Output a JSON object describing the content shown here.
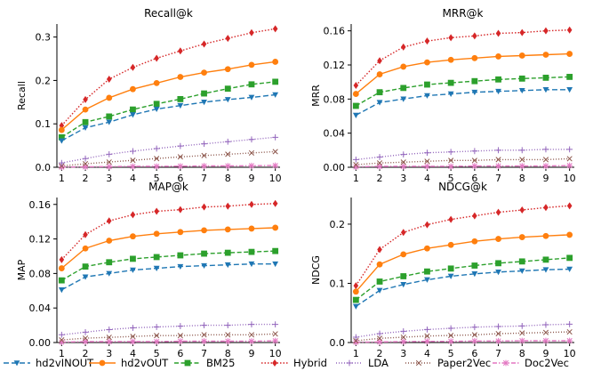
{
  "legend": [
    {
      "label": "hd2vINOUT",
      "color": "#1f77b4"
    },
    {
      "label": "hd2vOUT",
      "color": "#ff7f0e"
    },
    {
      "label": "BM25",
      "color": "#2ca02c"
    },
    {
      "label": "Hybrid",
      "color": "#d62728"
    },
    {
      "label": "LDA",
      "color": "#9467bd"
    },
    {
      "label": "Paper2Vec",
      "color": "#8c564b"
    },
    {
      "label": "Doc2Vec",
      "color": "#e377c2"
    }
  ],
  "chart_data": [
    {
      "type": "line",
      "title": "Recall@k",
      "xlabel": "",
      "ylabel": "Recall",
      "x": [
        1,
        2,
        3,
        4,
        5,
        6,
        7,
        8,
        9,
        10
      ],
      "ylim": [
        0,
        0.33
      ],
      "yticks": [
        "0.0",
        "0.1",
        "0.2",
        "0.3"
      ],
      "ytick_values": [
        0,
        0.1,
        0.2,
        0.3
      ],
      "xticks": [
        "1",
        "2",
        "3",
        "4",
        "5",
        "6",
        "7",
        "8",
        "9",
        "10"
      ],
      "series": [
        {
          "name": "hd2vINOUT",
          "values": [
            0.061,
            0.091,
            0.104,
            0.121,
            0.134,
            0.142,
            0.15,
            0.156,
            0.161,
            0.167
          ]
        },
        {
          "name": "hd2vOUT",
          "values": [
            0.086,
            0.133,
            0.16,
            0.18,
            0.194,
            0.208,
            0.218,
            0.226,
            0.236,
            0.243
          ]
        },
        {
          "name": "BM25",
          "values": [
            0.069,
            0.104,
            0.117,
            0.133,
            0.146,
            0.157,
            0.17,
            0.181,
            0.191,
            0.197
          ]
        },
        {
          "name": "Hybrid",
          "values": [
            0.096,
            0.156,
            0.203,
            0.23,
            0.251,
            0.268,
            0.284,
            0.297,
            0.31,
            0.319
          ]
        },
        {
          "name": "LDA",
          "values": [
            0.01,
            0.02,
            0.03,
            0.037,
            0.043,
            0.049,
            0.054,
            0.059,
            0.064,
            0.069
          ]
        },
        {
          "name": "Paper2Vec",
          "values": [
            0.003,
            0.008,
            0.012,
            0.016,
            0.02,
            0.024,
            0.027,
            0.03,
            0.033,
            0.036
          ]
        },
        {
          "name": "Doc2Vec",
          "values": [
            0.0005,
            0.001,
            0.0015,
            0.002,
            0.002,
            0.0025,
            0.003,
            0.003,
            0.0035,
            0.004
          ]
        }
      ]
    },
    {
      "type": "line",
      "title": "MRR@k",
      "xlabel": "",
      "ylabel": "MRR",
      "x": [
        1,
        2,
        3,
        4,
        5,
        6,
        7,
        8,
        9,
        10
      ],
      "ylim": [
        0,
        0.168
      ],
      "yticks": [
        "0.00",
        "0.04",
        "0.08",
        "0.12",
        "0.16"
      ],
      "ytick_values": [
        0,
        0.04,
        0.08,
        0.12,
        0.16
      ],
      "xticks": [
        "1",
        "2",
        "3",
        "4",
        "5",
        "6",
        "7",
        "8",
        "9",
        "10"
      ],
      "series": [
        {
          "name": "hd2vINOUT",
          "values": [
            0.061,
            0.076,
            0.08,
            0.084,
            0.086,
            0.088,
            0.089,
            0.09,
            0.091,
            0.091
          ]
        },
        {
          "name": "hd2vOUT",
          "values": [
            0.086,
            0.109,
            0.118,
            0.123,
            0.126,
            0.128,
            0.13,
            0.131,
            0.132,
            0.133
          ]
        },
        {
          "name": "BM25",
          "values": [
            0.072,
            0.088,
            0.093,
            0.097,
            0.099,
            0.101,
            0.103,
            0.104,
            0.105,
            0.106
          ]
        },
        {
          "name": "Hybrid",
          "values": [
            0.096,
            0.125,
            0.141,
            0.148,
            0.152,
            0.154,
            0.157,
            0.158,
            0.16,
            0.161
          ]
        },
        {
          "name": "LDA",
          "values": [
            0.009,
            0.012,
            0.015,
            0.017,
            0.018,
            0.019,
            0.02,
            0.02,
            0.021,
            0.021
          ]
        },
        {
          "name": "Paper2Vec",
          "values": [
            0.003,
            0.005,
            0.006,
            0.007,
            0.008,
            0.008,
            0.009,
            0.009,
            0.009,
            0.01
          ]
        },
        {
          "name": "Doc2Vec",
          "values": [
            0.0005,
            0.001,
            0.001,
            0.001,
            0.001,
            0.0015,
            0.0015,
            0.0015,
            0.0015,
            0.002
          ]
        }
      ]
    },
    {
      "type": "line",
      "title": "MAP@k",
      "xlabel": "",
      "ylabel": "MAP",
      "x": [
        1,
        2,
        3,
        4,
        5,
        6,
        7,
        8,
        9,
        10
      ],
      "ylim": [
        0,
        0.168
      ],
      "yticks": [
        "0.00",
        "0.04",
        "0.08",
        "0.12",
        "0.16"
      ],
      "ytick_values": [
        0,
        0.04,
        0.08,
        0.12,
        0.16
      ],
      "xticks": [
        "1",
        "2",
        "3",
        "4",
        "5",
        "6",
        "7",
        "8",
        "9",
        "10"
      ],
      "series": [
        {
          "name": "hd2vINOUT",
          "values": [
            0.061,
            0.076,
            0.08,
            0.084,
            0.086,
            0.088,
            0.089,
            0.09,
            0.091,
            0.091
          ]
        },
        {
          "name": "hd2vOUT",
          "values": [
            0.086,
            0.109,
            0.118,
            0.123,
            0.126,
            0.128,
            0.13,
            0.131,
            0.132,
            0.133
          ]
        },
        {
          "name": "BM25",
          "values": [
            0.072,
            0.088,
            0.093,
            0.097,
            0.099,
            0.101,
            0.103,
            0.104,
            0.105,
            0.106
          ]
        },
        {
          "name": "Hybrid",
          "values": [
            0.096,
            0.125,
            0.141,
            0.148,
            0.152,
            0.154,
            0.157,
            0.158,
            0.16,
            0.161
          ]
        },
        {
          "name": "LDA",
          "values": [
            0.009,
            0.012,
            0.015,
            0.017,
            0.018,
            0.019,
            0.02,
            0.02,
            0.021,
            0.021
          ]
        },
        {
          "name": "Paper2Vec",
          "values": [
            0.003,
            0.005,
            0.006,
            0.007,
            0.008,
            0.008,
            0.009,
            0.009,
            0.009,
            0.01
          ]
        },
        {
          "name": "Doc2Vec",
          "values": [
            0.0005,
            0.001,
            0.001,
            0.001,
            0.001,
            0.0015,
            0.0015,
            0.0015,
            0.0015,
            0.002
          ]
        }
      ]
    },
    {
      "type": "line",
      "title": "NDCG@k",
      "xlabel": "",
      "ylabel": "NDCG",
      "x": [
        1,
        2,
        3,
        4,
        5,
        6,
        7,
        8,
        9,
        10
      ],
      "ylim": [
        0,
        0.245
      ],
      "yticks": [
        "0.0",
        "0.1",
        "0.2"
      ],
      "ytick_values": [
        0,
        0.1,
        0.2
      ],
      "xticks": [
        "1",
        "2",
        "3",
        "4",
        "5",
        "6",
        "7",
        "8",
        "9",
        "10"
      ],
      "series": [
        {
          "name": "hd2vINOUT",
          "values": [
            0.061,
            0.088,
            0.098,
            0.106,
            0.112,
            0.116,
            0.119,
            0.121,
            0.123,
            0.124
          ]
        },
        {
          "name": "hd2vOUT",
          "values": [
            0.086,
            0.132,
            0.149,
            0.159,
            0.165,
            0.171,
            0.175,
            0.178,
            0.18,
            0.182
          ]
        },
        {
          "name": "BM25",
          "values": [
            0.072,
            0.103,
            0.112,
            0.12,
            0.125,
            0.13,
            0.134,
            0.137,
            0.14,
            0.143
          ]
        },
        {
          "name": "Hybrid",
          "values": [
            0.096,
            0.157,
            0.186,
            0.199,
            0.208,
            0.214,
            0.22,
            0.224,
            0.228,
            0.231
          ]
        },
        {
          "name": "LDA",
          "values": [
            0.009,
            0.015,
            0.019,
            0.022,
            0.024,
            0.026,
            0.027,
            0.028,
            0.03,
            0.031
          ]
        },
        {
          "name": "Paper2Vec",
          "values": [
            0.003,
            0.007,
            0.009,
            0.011,
            0.012,
            0.013,
            0.015,
            0.016,
            0.017,
            0.018
          ]
        },
        {
          "name": "Doc2Vec",
          "values": [
            0.0005,
            0.001,
            0.0015,
            0.002,
            0.002,
            0.0025,
            0.0025,
            0.003,
            0.003,
            0.003
          ]
        }
      ]
    }
  ]
}
